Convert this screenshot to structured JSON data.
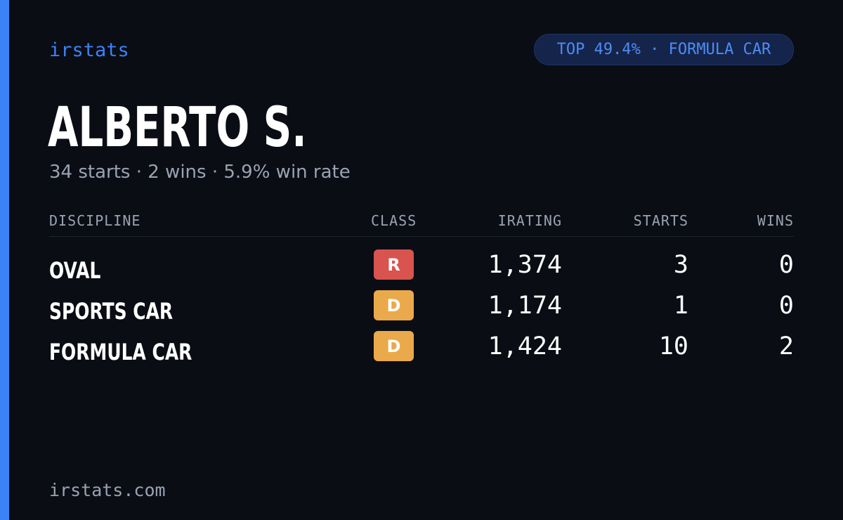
{
  "brand": "irstats",
  "badge": "TOP 49.4% · FORMULA CAR",
  "driver": {
    "name": "ALBERTO S.",
    "summary": "34 starts · 2 wins · 5.9% win rate"
  },
  "table": {
    "headers": {
      "discipline": "DISCIPLINE",
      "class": "CLASS",
      "irating": "IRATING",
      "starts": "STARTS",
      "wins": "WINS"
    },
    "rows": [
      {
        "discipline": "OVAL",
        "class": "R",
        "class_color": "#d9534f",
        "irating": "1,374",
        "starts": "3",
        "wins": "0"
      },
      {
        "discipline": "SPORTS CAR",
        "class": "D",
        "class_color": "#eaa94a",
        "irating": "1,174",
        "starts": "1",
        "wins": "0"
      },
      {
        "discipline": "FORMULA CAR",
        "class": "D",
        "class_color": "#eaa94a",
        "irating": "1,424",
        "starts": "10",
        "wins": "2"
      }
    ]
  },
  "footer": {
    "domain": "irstats.com"
  },
  "colors": {
    "accent": "#3b82f6",
    "background": "#0a0d14",
    "muted_text": "#9aa3b2",
    "class_r": "#d9534f",
    "class_d": "#eaa94a"
  }
}
